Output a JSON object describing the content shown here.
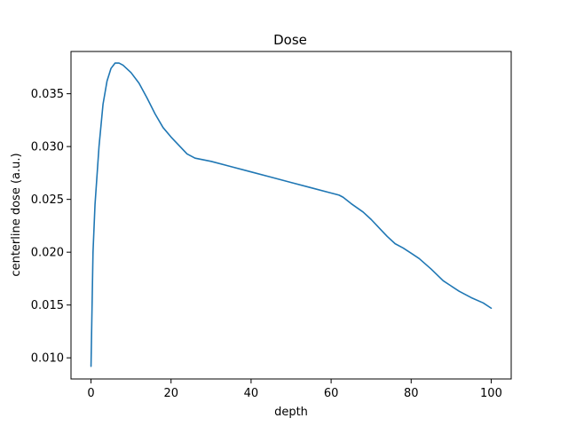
{
  "chart_data": {
    "type": "line",
    "title": "Dose",
    "xlabel": "depth",
    "ylabel": "centerline dose (a.u.)",
    "xlim": [
      -5,
      105
    ],
    "ylim": [
      0.008,
      0.039
    ],
    "xticks": [
      0,
      20,
      40,
      60,
      80,
      100
    ],
    "xtick_labels": [
      "0",
      "20",
      "40",
      "60",
      "80",
      "100"
    ],
    "yticks": [
      0.01,
      0.015,
      0.02,
      0.025,
      0.03,
      0.035
    ],
    "ytick_labels": [
      "0.010",
      "0.015",
      "0.020",
      "0.025",
      "0.030",
      "0.035"
    ],
    "grid": false,
    "series": [
      {
        "color": "#1f77b4",
        "x": [
          0,
          0.5,
          1,
          2,
          3,
          4,
          5,
          6,
          7,
          8,
          10,
          12,
          14,
          16,
          18,
          20,
          22,
          24,
          26,
          30,
          35,
          40,
          45,
          50,
          55,
          60,
          62,
          63,
          65,
          68,
          70,
          72,
          74,
          76,
          78,
          80,
          82,
          85,
          88,
          90,
          92,
          95,
          98,
          100
        ],
        "y": [
          0.0092,
          0.02,
          0.0245,
          0.03,
          0.034,
          0.0362,
          0.0374,
          0.0379,
          0.0379,
          0.0377,
          0.037,
          0.036,
          0.0346,
          0.0331,
          0.0318,
          0.0309,
          0.0301,
          0.0293,
          0.0289,
          0.0286,
          0.0281,
          0.0276,
          0.0271,
          0.0266,
          0.0261,
          0.0256,
          0.0254,
          0.0252,
          0.0246,
          0.0238,
          0.0231,
          0.0223,
          0.0215,
          0.0208,
          0.0204,
          0.0199,
          0.0194,
          0.0184,
          0.0173,
          0.0168,
          0.0163,
          0.0157,
          0.0152,
          0.0147
        ]
      }
    ]
  }
}
